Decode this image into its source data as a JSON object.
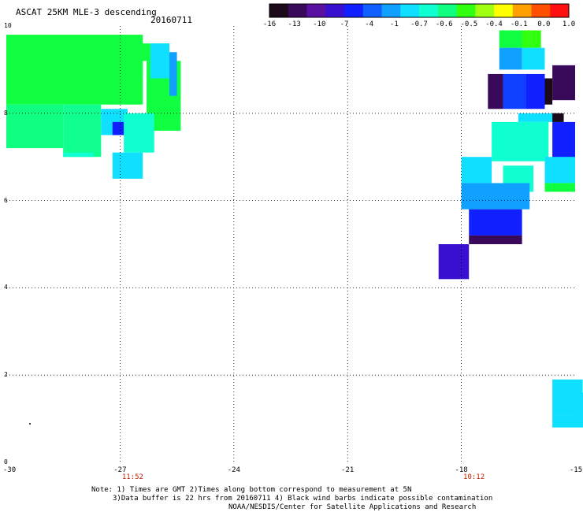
{
  "header": {
    "title": "ASCAT 25KM MLE-3 descending",
    "date": "20160711"
  },
  "colorbar": {
    "labels": [
      "-16",
      "-13",
      "-10",
      "-7",
      "-4",
      "-1",
      "-0.7",
      "-0.6",
      "-0.5",
      "-0.4",
      "-0.1",
      "0.0",
      "1.0"
    ],
    "colors": [
      "#1a0a1a",
      "#3a0a5a",
      "#5a10a0",
      "#3a10d0",
      "#1020ff",
      "#1060ff",
      "#10a0ff",
      "#10e0ff",
      "#10ffd0",
      "#10ff80",
      "#30ff10",
      "#a0ff10",
      "#ffff00",
      "#ffa000",
      "#ff5000",
      "#ff1010"
    ]
  },
  "map": {
    "x_ticks": [
      "-30",
      "-27",
      "-24",
      "-21",
      "-18",
      "-15"
    ],
    "y_ticks": [
      "10",
      "8",
      "6",
      "4",
      "2",
      "0"
    ],
    "times": [
      {
        "label": "11:52",
        "lon": -27
      },
      {
        "label": "10:12",
        "lon": -18
      }
    ],
    "lon_range": [
      -30,
      -15
    ],
    "lat_range": [
      0,
      10
    ],
    "cells": [
      {
        "lon": -30,
        "lat": 9.8,
        "w": 3.6,
        "h": 1.6,
        "c": "#10ff40"
      },
      {
        "lon": -26.5,
        "lat": 9.6,
        "w": 0.8,
        "h": 0.4,
        "c": "#10ff40"
      },
      {
        "lon": -26.3,
        "lat": 9.2,
        "w": 0.9,
        "h": 1.6,
        "c": "#10ff40"
      },
      {
        "lon": -30,
        "lat": 8.2,
        "w": 1.5,
        "h": 1.0,
        "c": "#10ff80"
      },
      {
        "lon": -28.5,
        "lat": 8.2,
        "w": 1.0,
        "h": 1.2,
        "c": "#10ff90"
      },
      {
        "lon": -27.5,
        "lat": 8.1,
        "w": 0.7,
        "h": 0.6,
        "c": "#10e0ff"
      },
      {
        "lon": -27.2,
        "lat": 7.8,
        "w": 0.3,
        "h": 0.3,
        "c": "#1020ff"
      },
      {
        "lon": -26.9,
        "lat": 8.0,
        "w": 0.8,
        "h": 0.9,
        "c": "#10ffd0"
      },
      {
        "lon": -28.5,
        "lat": 7.1,
        "w": 0.8,
        "h": 0.1,
        "c": "#10ffd0"
      },
      {
        "lon": -27.2,
        "lat": 7.1,
        "w": 0.8,
        "h": 0.6,
        "c": "#10e0ff"
      },
      {
        "lon": -25.7,
        "lat": 9.4,
        "w": 0.2,
        "h": 1.0,
        "c": "#10a0ff"
      },
      {
        "lon": -26.2,
        "lat": 9.6,
        "w": 0.5,
        "h": 0.8,
        "c": "#10e0ff"
      },
      {
        "lon": -17.0,
        "lat": 9.9,
        "w": 0.8,
        "h": 0.4,
        "c": "#10ff40"
      },
      {
        "lon": -16.4,
        "lat": 9.9,
        "w": 0.5,
        "h": 0.4,
        "c": "#30ff10"
      },
      {
        "lon": -17.0,
        "lat": 9.5,
        "w": 0.6,
        "h": 0.5,
        "c": "#10a0ff"
      },
      {
        "lon": -16.4,
        "lat": 9.5,
        "w": 0.6,
        "h": 0.5,
        "c": "#10e0ff"
      },
      {
        "lon": -15.6,
        "lat": 9.1,
        "w": 0.6,
        "h": 0.8,
        "c": "#3a0a5a"
      },
      {
        "lon": -17.3,
        "lat": 8.9,
        "w": 0.4,
        "h": 0.8,
        "c": "#3a0a5a"
      },
      {
        "lon": -16.9,
        "lat": 8.9,
        "w": 0.6,
        "h": 0.8,
        "c": "#1040ff"
      },
      {
        "lon": -16.3,
        "lat": 8.9,
        "w": 0.5,
        "h": 0.8,
        "c": "#1020ff"
      },
      {
        "lon": -15.8,
        "lat": 8.8,
        "w": 0.2,
        "h": 0.6,
        "c": "#1a0a1a"
      },
      {
        "lon": -16.5,
        "lat": 8.0,
        "w": 1.1,
        "h": 0.2,
        "c": "#10e0ff"
      },
      {
        "lon": -17.2,
        "lat": 7.8,
        "w": 1.5,
        "h": 0.9,
        "c": "#10ffd0"
      },
      {
        "lon": -15.6,
        "lat": 7.8,
        "w": 0.6,
        "h": 0.9,
        "c": "#1020ff"
      },
      {
        "lon": -15.6,
        "lat": 8.0,
        "w": 0.3,
        "h": 0.2,
        "c": "#1a0a1a"
      },
      {
        "lon": -18.0,
        "lat": 7.0,
        "w": 0.8,
        "h": 0.6,
        "c": "#10e0ff"
      },
      {
        "lon": -16.9,
        "lat": 6.8,
        "w": 0.8,
        "h": 0.6,
        "c": "#10ffd0"
      },
      {
        "lon": -15.8,
        "lat": 7.0,
        "w": 0.8,
        "h": 0.6,
        "c": "#10e0ff"
      },
      {
        "lon": -15.8,
        "lat": 6.4,
        "w": 0.8,
        "h": 0.2,
        "c": "#10ff40"
      },
      {
        "lon": -18.0,
        "lat": 6.4,
        "w": 1.8,
        "h": 0.6,
        "c": "#10a0ff"
      },
      {
        "lon": -17.8,
        "lat": 5.8,
        "w": 1.4,
        "h": 0.6,
        "c": "#1020ff"
      },
      {
        "lon": -17.8,
        "lat": 5.2,
        "w": 1.4,
        "h": 0.2,
        "c": "#3a0a5a"
      },
      {
        "lon": -18.6,
        "lat": 5.0,
        "w": 0.8,
        "h": 0.8,
        "c": "#3a10d0"
      },
      {
        "lon": -15.6,
        "lat": 1.9,
        "w": 0.8,
        "h": 0.8,
        "c": "#10e0ff"
      },
      {
        "lon": -15.0,
        "lat": 1.6,
        "w": 0.8,
        "h": 0.8,
        "c": "#10e0ff"
      },
      {
        "lon": -15.6,
        "lat": 1.1,
        "w": 0.6,
        "h": 0.3,
        "c": "#10e0ff"
      }
    ]
  },
  "notes": [
    "Note: 1) Times are GMT 2)Times along bottom correspond to measurement at 5N",
    "3)Data buffer is 22 hrs from 20160711 4) Black wind barbs indicate possible contamination",
    "NOAA/NESDIS/Center for Satellite Applications and Research"
  ]
}
